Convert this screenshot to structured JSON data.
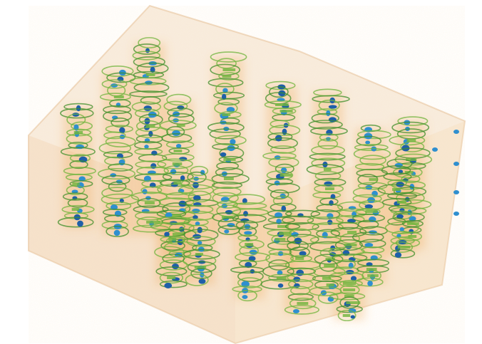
{
  "scene": {
    "subject": "volume-rendering",
    "colors": {
      "background": "#ffffff",
      "volume_fill": "#f3dcc2",
      "volume_edge": "#e2b78a",
      "glow": "#f0a04a",
      "rings": "#6fb43c",
      "rings_dark": "#3f8f2a",
      "spots": "#1f5fa8",
      "spots_light": "#2f8fcf"
    }
  }
}
